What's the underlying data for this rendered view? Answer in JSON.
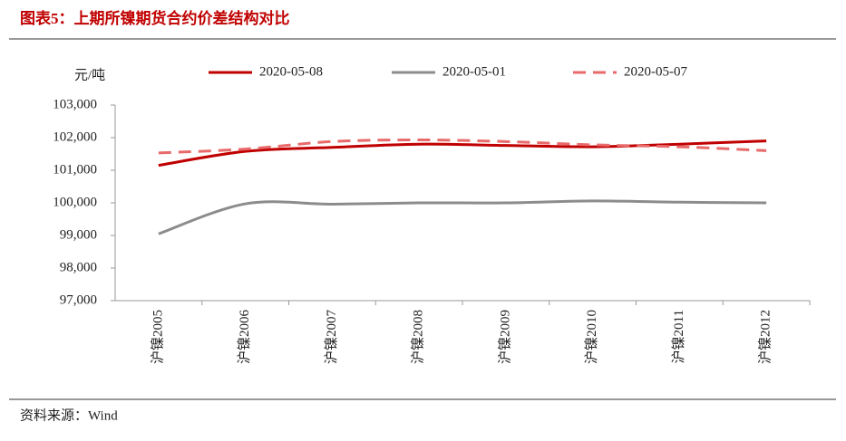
{
  "chart_data": {
    "type": "line",
    "title": "图表5：上期所镍期货合约价差结构对比",
    "y_label": "元/吨",
    "source": "资料来源：Wind",
    "categories": [
      "沪镍2005",
      "沪镍2006",
      "沪镍2007",
      "沪镍2008",
      "沪镍2009",
      "沪镍2010",
      "沪镍2011",
      "沪镍2012"
    ],
    "series": [
      {
        "name": "2020-05-08",
        "color": "#c00000",
        "dashed": false,
        "values": [
          101150,
          101580,
          101700,
          101800,
          101760,
          101720,
          101800,
          101900
        ]
      },
      {
        "name": "2020-05-01",
        "color": "#8c8c8c",
        "dashed": false,
        "values": [
          99050,
          99970,
          99960,
          100000,
          100000,
          100060,
          100020,
          100000
        ]
      },
      {
        "name": "2020-05-07",
        "color": "#e86a6a",
        "dashed": true,
        "values": [
          101530,
          101650,
          101880,
          101930,
          101880,
          101780,
          101720,
          101600
        ]
      }
    ],
    "ylim": [
      97000,
      103000
    ],
    "yticks": [
      {
        "value": 97000,
        "label": "97,000"
      },
      {
        "value": 98000,
        "label": "98,000"
      },
      {
        "value": 99000,
        "label": "99,000"
      },
      {
        "value": 100000,
        "label": "100,000"
      },
      {
        "value": 101000,
        "label": "101,000"
      },
      {
        "value": 102000,
        "label": "102,000"
      },
      {
        "value": 103000,
        "label": "103,000"
      }
    ],
    "grid": false
  }
}
